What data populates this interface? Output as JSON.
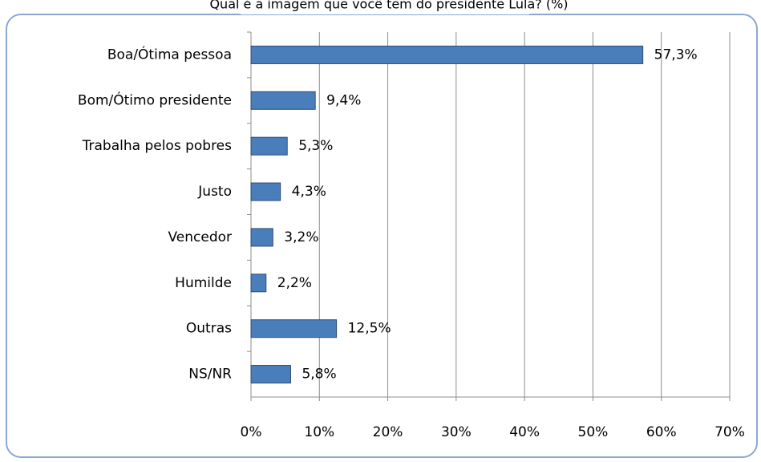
{
  "chart_data": {
    "type": "bar",
    "orientation": "horizontal",
    "title": "Qual é a imagem que você tem do presidente Lula? (%)",
    "categories": [
      "Boa/Ótima pessoa",
      "Bom/Ótimo presidente",
      "Trabalha pelos pobres",
      "Justo",
      "Vencedor",
      "Humilde",
      "Outras",
      "NS/NR"
    ],
    "values": [
      57.3,
      9.4,
      5.3,
      4.3,
      3.2,
      2.2,
      12.5,
      5.8
    ],
    "value_labels": [
      "57,3%",
      "9,4%",
      "5,3%",
      "4,3%",
      "3,2%",
      "2,2%",
      "12,5%",
      "5,8%"
    ],
    "color": "#4a7ebb",
    "xlim": [
      0,
      70
    ],
    "xticks": [
      {
        "value": 0,
        "label": "0%"
      },
      {
        "value": 10,
        "label": "10%"
      },
      {
        "value": 20,
        "label": "20%"
      },
      {
        "value": 30,
        "label": "30%"
      },
      {
        "value": 40,
        "label": "40%"
      },
      {
        "value": 50,
        "label": "50%"
      },
      {
        "value": 60,
        "label": "60%"
      },
      {
        "value": 70,
        "label": "70%"
      }
    ],
    "grid": true
  }
}
